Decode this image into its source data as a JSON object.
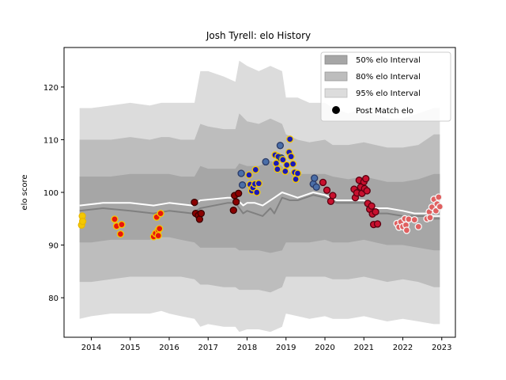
{
  "chart_data": {
    "type": "line",
    "title": "Josh Tyrell: elo History",
    "xlabel": "",
    "ylabel": "elo score",
    "xlim": [
      2013.3,
      2023.35
    ],
    "ylim": [
      72.5,
      127.5
    ],
    "xticks": [
      2014,
      2015,
      2016,
      2017,
      2018,
      2019,
      2020,
      2021,
      2022,
      2023
    ],
    "xtick_labels": [
      "2014",
      "2015",
      "2016",
      "2017",
      "2018",
      "2019",
      "2020",
      "2021",
      "2022",
      "2023"
    ],
    "yticks": [
      80,
      90,
      100,
      110,
      120
    ],
    "ytick_labels": [
      "80",
      "90",
      "100",
      "110",
      "120"
    ],
    "legend_position": "top-right",
    "legend": [
      {
        "label": "50% elo Interval",
        "color": "#a6a6a6"
      },
      {
        "label": "80% elo Interval",
        "color": "#bdbdbd"
      },
      {
        "label": "95% elo Interval",
        "color": "#dcdcdc"
      },
      {
        "label": "Post Match elo",
        "color": "#000000"
      }
    ],
    "bands": {
      "x": [
        2013.7,
        2014.0,
        2014.5,
        2015.0,
        2015.5,
        2015.8,
        2016.0,
        2016.3,
        2016.65,
        2016.8,
        2017.0,
        2017.4,
        2017.7,
        2017.8,
        2018.0,
        2018.3,
        2018.6,
        2018.9,
        2019.0,
        2019.3,
        2019.6,
        2020.0,
        2020.2,
        2020.6,
        2021.0,
        2021.3,
        2021.6,
        2022.0,
        2022.4,
        2022.8,
        2022.95
      ],
      "p95_upper": [
        116,
        116,
        116.5,
        117,
        116.5,
        117,
        117,
        117,
        117,
        123,
        123,
        122,
        121,
        125,
        124,
        123,
        124,
        123,
        118,
        118,
        117,
        117,
        116,
        115,
        116,
        115,
        114,
        114,
        115,
        116,
        116
      ],
      "p95_lower": [
        76,
        76.5,
        77,
        77,
        77,
        77.5,
        77,
        76.5,
        76,
        74.5,
        75,
        74.5,
        74.5,
        73.5,
        74,
        74,
        73.5,
        74.5,
        77,
        76.5,
        76,
        76.5,
        76,
        76,
        76.5,
        76,
        75.5,
        76,
        75.5,
        75,
        75
      ],
      "p80_upper": [
        110,
        110,
        110,
        110.5,
        110,
        110.5,
        110.5,
        110,
        110,
        113,
        112.5,
        112,
        112,
        115,
        113.5,
        113,
        114,
        113,
        111,
        110,
        109.5,
        110,
        109,
        109,
        109.5,
        109,
        108.5,
        108.5,
        109,
        111,
        111
      ],
      "p80_lower": [
        83,
        83,
        83.5,
        84,
        84,
        84,
        84,
        84,
        83.5,
        82.5,
        82.5,
        82,
        82,
        81.5,
        81.5,
        81.5,
        81,
        82,
        84,
        84,
        84,
        84,
        83.5,
        83.5,
        84,
        83.5,
        83,
        83.5,
        83,
        82,
        82
      ],
      "p50_upper": [
        103,
        103,
        103,
        103.5,
        103.5,
        103.5,
        103.5,
        103,
        103,
        105,
        104.5,
        104.5,
        104.5,
        105.5,
        105,
        105,
        106,
        105,
        104,
        103.5,
        103.5,
        103.5,
        103,
        102.5,
        103,
        102.5,
        102,
        102,
        102.5,
        103.5,
        103.5
      ],
      "p50_lower": [
        90.5,
        90.5,
        91,
        91,
        91,
        91.5,
        91.5,
        91,
        90.5,
        89.5,
        89.5,
        89.5,
        89.5,
        89,
        89,
        89,
        88.5,
        89,
        90.5,
        90.5,
        90.5,
        91,
        90.5,
        90.5,
        91,
        90.5,
        90,
        90,
        89.5,
        89,
        89
      ]
    },
    "series": [
      {
        "key": "mean",
        "color": "#ffffff",
        "x": [
          2013.7,
          2014.3,
          2015.0,
          2015.6,
          2016.0,
          2016.6,
          2016.8,
          2017.5,
          2017.7,
          2017.9,
          2018.0,
          2018.2,
          2018.4,
          2018.6,
          2018.7,
          2018.9,
          2019.1,
          2019.3,
          2019.5,
          2019.7,
          2020.0,
          2020.3,
          2020.6,
          2021.0,
          2021.3,
          2021.6,
          2022.0,
          2022.3,
          2022.6,
          2022.8,
          2022.95
        ],
        "y": [
          97.5,
          98,
          98,
          97.5,
          98,
          97.5,
          98.5,
          99,
          99,
          97.5,
          98,
          98,
          97.5,
          98.5,
          99,
          100,
          99.5,
          99,
          99.5,
          100,
          99.5,
          98.5,
          98.5,
          98.5,
          97,
          97,
          96.5,
          96,
          96,
          95.5,
          95.5
        ]
      },
      {
        "key": "median",
        "color": "#808080",
        "x": [
          2013.7,
          2014.3,
          2015.0,
          2015.6,
          2016.0,
          2016.6,
          2016.8,
          2017.5,
          2017.7,
          2017.9,
          2018.0,
          2018.2,
          2018.4,
          2018.6,
          2018.7,
          2018.9,
          2019.1,
          2019.3,
          2019.5,
          2019.7,
          2020.0,
          2020.3,
          2020.6,
          2021.0,
          2021.3,
          2021.6,
          2022.0,
          2022.3,
          2022.6,
          2022.8,
          2022.95
        ],
        "y": [
          96.5,
          97,
          96.5,
          96,
          96.5,
          96,
          97,
          98,
          98,
          96,
          96.5,
          96,
          95.5,
          97,
          96,
          99,
          98.5,
          98.5,
          99,
          99.5,
          99,
          98,
          98,
          98,
          96,
          96,
          95.5,
          95.5,
          95.5,
          95,
          95
        ]
      }
    ],
    "points": [
      {
        "x": 2013.75,
        "y": 93.8,
        "fill": "#f5c800",
        "stroke": "#e8b800"
      },
      {
        "x": 2013.77,
        "y": 95.5,
        "fill": "#f5c800",
        "stroke": "#e8b800"
      },
      {
        "x": 2013.78,
        "y": 94.5,
        "fill": "#f5c800",
        "stroke": "#e8b800"
      },
      {
        "x": 2014.6,
        "y": 94.9,
        "fill": "#e8160c",
        "stroke": "#f5c800"
      },
      {
        "x": 2014.65,
        "y": 93.6,
        "fill": "#e8160c",
        "stroke": "#f5c800"
      },
      {
        "x": 2014.75,
        "y": 92.1,
        "fill": "#e8160c",
        "stroke": "#f5c800"
      },
      {
        "x": 2014.78,
        "y": 93.9,
        "fill": "#e8160c",
        "stroke": "#f5c800"
      },
      {
        "x": 2015.6,
        "y": 91.6,
        "fill": "#e8160c",
        "stroke": "#f5c800"
      },
      {
        "x": 2015.65,
        "y": 92.2,
        "fill": "#e8160c",
        "stroke": "#f5c800"
      },
      {
        "x": 2015.68,
        "y": 95.3,
        "fill": "#e8160c",
        "stroke": "#f5c800"
      },
      {
        "x": 2015.72,
        "y": 92.8,
        "fill": "#e8160c",
        "stroke": "#f5c800"
      },
      {
        "x": 2015.72,
        "y": 91.8,
        "fill": "#e8160c",
        "stroke": "#f5c800"
      },
      {
        "x": 2015.75,
        "y": 93.1,
        "fill": "#e8160c",
        "stroke": "#f5c800"
      },
      {
        "x": 2015.78,
        "y": 96.0,
        "fill": "#e8160c",
        "stroke": "#f5c800"
      },
      {
        "x": 2016.65,
        "y": 98.1,
        "fill": "#8b0000",
        "stroke": "#3a0000"
      },
      {
        "x": 2016.68,
        "y": 96.0,
        "fill": "#8b0000",
        "stroke": "#3a0000"
      },
      {
        "x": 2016.75,
        "y": 95.6,
        "fill": "#8b0000",
        "stroke": "#3a0000"
      },
      {
        "x": 2016.78,
        "y": 94.9,
        "fill": "#8b0000",
        "stroke": "#3a0000"
      },
      {
        "x": 2016.82,
        "y": 96.0,
        "fill": "#8b0000",
        "stroke": "#3a0000"
      },
      {
        "x": 2017.65,
        "y": 96.6,
        "fill": "#8b0000",
        "stroke": "#3a0000"
      },
      {
        "x": 2017.68,
        "y": 99.4,
        "fill": "#8b0000",
        "stroke": "#3a0000"
      },
      {
        "x": 2017.72,
        "y": 98.2,
        "fill": "#8b0000",
        "stroke": "#3a0000"
      },
      {
        "x": 2017.78,
        "y": 99.8,
        "fill": "#8b0000",
        "stroke": "#3a0000"
      },
      {
        "x": 2017.85,
        "y": 103.6,
        "fill": "#4a6ea8",
        "stroke": "#2a3a66"
      },
      {
        "x": 2017.88,
        "y": 101.4,
        "fill": "#4a6ea8",
        "stroke": "#2a3a66"
      },
      {
        "x": 2018.05,
        "y": 103.3,
        "fill": "#1a1ab8",
        "stroke": "#f5c800"
      },
      {
        "x": 2018.08,
        "y": 101.5,
        "fill": "#1a1ab8",
        "stroke": "#f5c800"
      },
      {
        "x": 2018.12,
        "y": 100.3,
        "fill": "#1a1ab8",
        "stroke": "#f5c800"
      },
      {
        "x": 2018.15,
        "y": 100.9,
        "fill": "#1a1ab8",
        "stroke": "#f5c800"
      },
      {
        "x": 2018.2,
        "y": 101.6,
        "fill": "#1a1ab8",
        "stroke": "#f5c800"
      },
      {
        "x": 2018.22,
        "y": 104.3,
        "fill": "#1a1ab8",
        "stroke": "#f5c800"
      },
      {
        "x": 2018.25,
        "y": 100.0,
        "fill": "#1a1ab8",
        "stroke": "#f5c800"
      },
      {
        "x": 2018.3,
        "y": 101.7,
        "fill": "#1a1ab8",
        "stroke": "#f5c800"
      },
      {
        "x": 2018.48,
        "y": 105.8,
        "fill": "#4a6ea8",
        "stroke": "#2a3a66"
      },
      {
        "x": 2018.72,
        "y": 107.1,
        "fill": "#1a1ab8",
        "stroke": "#f5c800"
      },
      {
        "x": 2018.75,
        "y": 105.5,
        "fill": "#1a1ab8",
        "stroke": "#f5c800"
      },
      {
        "x": 2018.78,
        "y": 104.4,
        "fill": "#1a1ab8",
        "stroke": "#f5c800"
      },
      {
        "x": 2018.8,
        "y": 106.8,
        "fill": "#1a1ab8",
        "stroke": "#f5c800"
      },
      {
        "x": 2018.85,
        "y": 108.9,
        "fill": "#4a6ea8",
        "stroke": "#2a3a66"
      },
      {
        "x": 2018.88,
        "y": 106.5,
        "fill": "#4a6ea8",
        "stroke": "#2a3a66"
      },
      {
        "x": 2018.92,
        "y": 106.2,
        "fill": "#1a1ab8",
        "stroke": "#f5c800"
      },
      {
        "x": 2018.98,
        "y": 104.0,
        "fill": "#1a1ab8",
        "stroke": "#f5c800"
      },
      {
        "x": 2019.02,
        "y": 105.2,
        "fill": "#1a1ab8",
        "stroke": "#f5c800"
      },
      {
        "x": 2019.08,
        "y": 107.6,
        "fill": "#1a1ab8",
        "stroke": "#f5c800"
      },
      {
        "x": 2019.1,
        "y": 110.1,
        "fill": "#1a1ab8",
        "stroke": "#f5c800"
      },
      {
        "x": 2019.13,
        "y": 106.8,
        "fill": "#1a1ab8",
        "stroke": "#f5c800"
      },
      {
        "x": 2019.18,
        "y": 105.4,
        "fill": "#1a1ab8",
        "stroke": "#f5c800"
      },
      {
        "x": 2019.22,
        "y": 103.8,
        "fill": "#1a1ab8",
        "stroke": "#f5c800"
      },
      {
        "x": 2019.25,
        "y": 102.5,
        "fill": "#1a1ab8",
        "stroke": "#f5c800"
      },
      {
        "x": 2019.3,
        "y": 103.6,
        "fill": "#1a1ab8",
        "stroke": "#f5c800"
      },
      {
        "x": 2019.7,
        "y": 101.6,
        "fill": "#4a6ea8",
        "stroke": "#2a3a66"
      },
      {
        "x": 2019.73,
        "y": 102.7,
        "fill": "#4a6ea8",
        "stroke": "#2a3a66"
      },
      {
        "x": 2019.78,
        "y": 101.0,
        "fill": "#4a6ea8",
        "stroke": "#2a3a66"
      },
      {
        "x": 2019.95,
        "y": 101.9,
        "fill": "#c8102e",
        "stroke": "#5a0010"
      },
      {
        "x": 2020.05,
        "y": 100.4,
        "fill": "#c8102e",
        "stroke": "#5a0010"
      },
      {
        "x": 2020.15,
        "y": 98.3,
        "fill": "#c8102e",
        "stroke": "#5a0010"
      },
      {
        "x": 2020.2,
        "y": 99.4,
        "fill": "#c8102e",
        "stroke": "#5a0010"
      },
      {
        "x": 2020.75,
        "y": 100.6,
        "fill": "#c8102e",
        "stroke": "#5a0010"
      },
      {
        "x": 2020.78,
        "y": 99.0,
        "fill": "#c8102e",
        "stroke": "#5a0010"
      },
      {
        "x": 2020.82,
        "y": 99.9,
        "fill": "#c8102e",
        "stroke": "#5a0010"
      },
      {
        "x": 2020.88,
        "y": 102.3,
        "fill": "#c8102e",
        "stroke": "#5a0010"
      },
      {
        "x": 2020.92,
        "y": 101.0,
        "fill": "#c8102e",
        "stroke": "#5a0010"
      },
      {
        "x": 2020.95,
        "y": 99.8,
        "fill": "#c8102e",
        "stroke": "#5a0010"
      },
      {
        "x": 2021.0,
        "y": 102.0,
        "fill": "#c8102e",
        "stroke": "#5a0010"
      },
      {
        "x": 2021.02,
        "y": 100.7,
        "fill": "#c8102e",
        "stroke": "#5a0010"
      },
      {
        "x": 2021.05,
        "y": 102.6,
        "fill": "#c8102e",
        "stroke": "#5a0010"
      },
      {
        "x": 2021.08,
        "y": 100.3,
        "fill": "#c8102e",
        "stroke": "#5a0010"
      },
      {
        "x": 2021.1,
        "y": 97.9,
        "fill": "#c8102e",
        "stroke": "#5a0010"
      },
      {
        "x": 2021.15,
        "y": 96.8,
        "fill": "#c8102e",
        "stroke": "#5a0010"
      },
      {
        "x": 2021.2,
        "y": 97.4,
        "fill": "#c8102e",
        "stroke": "#5a0010"
      },
      {
        "x": 2021.22,
        "y": 95.9,
        "fill": "#c8102e",
        "stroke": "#5a0010"
      },
      {
        "x": 2021.25,
        "y": 93.9,
        "fill": "#c8102e",
        "stroke": "#5a0010"
      },
      {
        "x": 2021.3,
        "y": 96.3,
        "fill": "#c8102e",
        "stroke": "#5a0010"
      },
      {
        "x": 2021.35,
        "y": 94.0,
        "fill": "#c8102e",
        "stroke": "#5a0010"
      },
      {
        "x": 2021.85,
        "y": 94.1,
        "fill": "#e06060",
        "stroke": "#f5f5f5"
      },
      {
        "x": 2021.9,
        "y": 93.4,
        "fill": "#e06060",
        "stroke": "#f5f5f5"
      },
      {
        "x": 2021.95,
        "y": 94.4,
        "fill": "#e06060",
        "stroke": "#f5f5f5"
      },
      {
        "x": 2022.0,
        "y": 93.5,
        "fill": "#e06060",
        "stroke": "#f5f5f5"
      },
      {
        "x": 2022.05,
        "y": 95.0,
        "fill": "#e06060",
        "stroke": "#f5f5f5"
      },
      {
        "x": 2022.08,
        "y": 93.8,
        "fill": "#e06060",
        "stroke": "#f5f5f5"
      },
      {
        "x": 2022.1,
        "y": 92.8,
        "fill": "#e06060",
        "stroke": "#f5f5f5"
      },
      {
        "x": 2022.15,
        "y": 94.9,
        "fill": "#e06060",
        "stroke": "#f5f5f5"
      },
      {
        "x": 2022.3,
        "y": 94.8,
        "fill": "#e06060",
        "stroke": "#f5f5f5"
      },
      {
        "x": 2022.4,
        "y": 93.5,
        "fill": "#e06060",
        "stroke": "#f5f5f5"
      },
      {
        "x": 2022.62,
        "y": 95.0,
        "fill": "#e06060",
        "stroke": "#f5f5f5"
      },
      {
        "x": 2022.68,
        "y": 96.3,
        "fill": "#e06060",
        "stroke": "#f5f5f5"
      },
      {
        "x": 2022.7,
        "y": 95.2,
        "fill": "#e06060",
        "stroke": "#f5f5f5"
      },
      {
        "x": 2022.75,
        "y": 97.2,
        "fill": "#e06060",
        "stroke": "#f5f5f5"
      },
      {
        "x": 2022.8,
        "y": 98.7,
        "fill": "#e06060",
        "stroke": "#f5f5f5"
      },
      {
        "x": 2022.85,
        "y": 96.5,
        "fill": "#e06060",
        "stroke": "#f5f5f5"
      },
      {
        "x": 2022.88,
        "y": 97.8,
        "fill": "#e06060",
        "stroke": "#f5f5f5"
      },
      {
        "x": 2022.92,
        "y": 99.1,
        "fill": "#e06060",
        "stroke": "#f5f5f5"
      },
      {
        "x": 2022.95,
        "y": 97.3,
        "fill": "#e06060",
        "stroke": "#f5f5f5"
      }
    ]
  }
}
